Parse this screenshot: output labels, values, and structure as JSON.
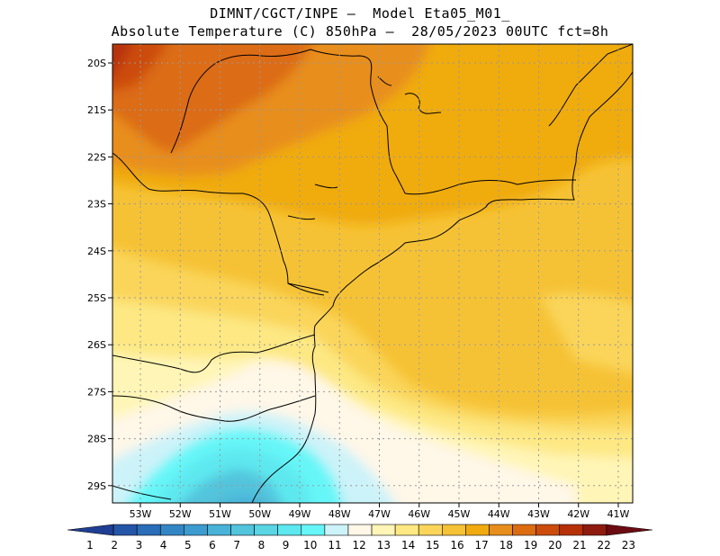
{
  "title_line1": "DIMNT/CGCT/INPE –  Model Eta05_M01_",
  "title_line2": "Absolute Temperature (C) 850hPa –  28/05/2023 00UTC fct=8h",
  "lat_labels": [
    "20S",
    "21S",
    "22S",
    "23S",
    "24S",
    "25S",
    "26S",
    "27S",
    "28S",
    "29S"
  ],
  "lon_labels": [
    "53W",
    "52W",
    "51W",
    "50W",
    "49W",
    "48W",
    "47W",
    "46W",
    "45W",
    "44W",
    "43W",
    "42W",
    "41W"
  ],
  "colorbar": {
    "labels": [
      "1",
      "2",
      "3",
      "4",
      "5",
      "6",
      "7",
      "8",
      "9",
      "10",
      "11",
      "12",
      "13",
      "14",
      "15",
      "16",
      "17",
      "18",
      "19",
      "20",
      "21",
      "22",
      "23"
    ],
    "colors": [
      "#1f3f95",
      "#2456a8",
      "#2a6db8",
      "#3386c4",
      "#3d9ccf",
      "#49b2d8",
      "#52c4dc",
      "#59d5e3",
      "#5de8ef",
      "#66f6f8",
      "#ccf3f9",
      "#fff7e8",
      "#fff5b6",
      "#fde883",
      "#fad55a",
      "#f6c235",
      "#f0ab11",
      "#e88e1c",
      "#dc6c12",
      "#cc4c0b",
      "#b63108",
      "#8f1b0e",
      "#6d0b12"
    ]
  },
  "chart_data": {
    "type": "map",
    "variable": "Absolute Temperature (C) 850hPa",
    "x_range": [
      -53.5,
      -40.5
    ],
    "y_range": [
      -29.5,
      -19.8
    ],
    "color_levels": [
      1,
      2,
      3,
      4,
      5,
      6,
      7,
      8,
      9,
      10,
      11,
      12,
      13,
      14,
      15,
      16,
      17,
      18,
      19,
      20,
      21,
      22,
      23
    ]
  }
}
